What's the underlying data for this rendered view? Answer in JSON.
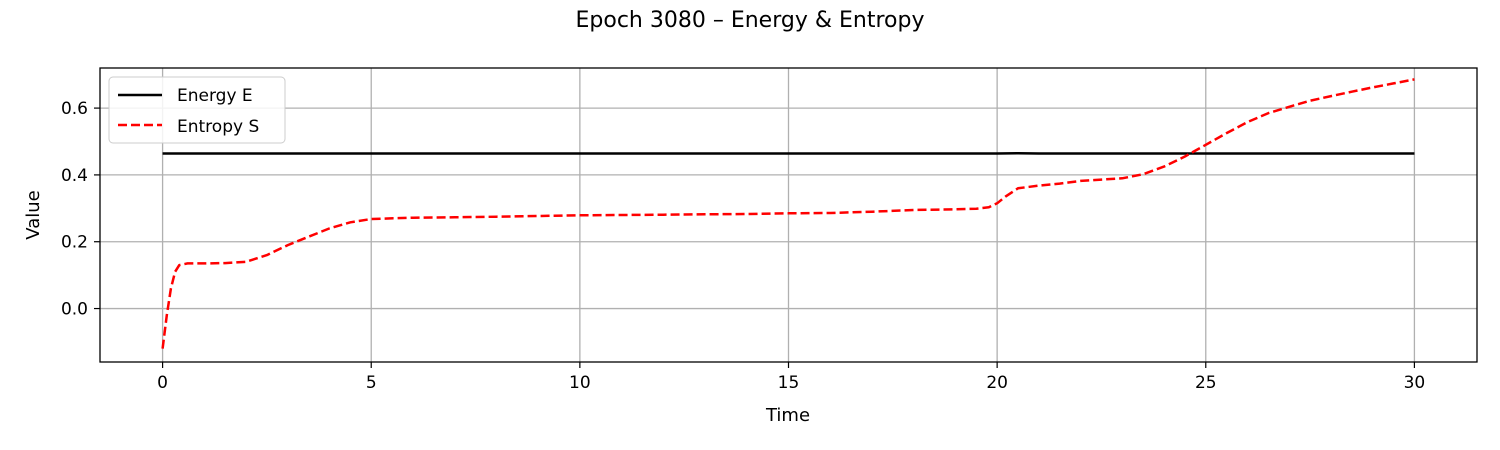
{
  "chart_data": {
    "type": "line",
    "title": "Epoch 3080 – Energy & Entropy",
    "xlabel": "Time",
    "ylabel": "Value",
    "xlim": [
      -1.5,
      31.5
    ],
    "ylim": [
      -0.16,
      0.72
    ],
    "xticks": [
      0,
      5,
      10,
      15,
      20,
      25,
      30
    ],
    "xtick_labels": [
      "0",
      "5",
      "10",
      "15",
      "20",
      "25",
      "30"
    ],
    "yticks": [
      0.0,
      0.2,
      0.4,
      0.6
    ],
    "ytick_labels": [
      "0.0",
      "0.2",
      "0.4",
      "0.6"
    ],
    "grid": true,
    "legend_position": "top-left",
    "series": [
      {
        "name": "Energy E",
        "color": "#000000",
        "linestyle": "solid",
        "x": [
          0,
          5,
          10,
          15,
          20,
          20.5,
          21,
          25,
          30
        ],
        "y": [
          0.464,
          0.464,
          0.464,
          0.464,
          0.464,
          0.465,
          0.464,
          0.464,
          0.464
        ]
      },
      {
        "name": "Entropy S",
        "color": "#ff0000",
        "linestyle": "dashed",
        "x": [
          0,
          0.1,
          0.2,
          0.3,
          0.4,
          0.6,
          1.0,
          1.5,
          2.0,
          2.5,
          3.0,
          3.5,
          4.0,
          4.5,
          5.0,
          6.0,
          7.0,
          8.0,
          9.0,
          10.0,
          11.0,
          12.0,
          13.0,
          14.0,
          15.0,
          16.0,
          17.0,
          18.0,
          19.0,
          19.5,
          19.8,
          20.0,
          20.2,
          20.5,
          21.0,
          21.5,
          22.0,
          22.5,
          23.0,
          23.5,
          24.0,
          24.5,
          25.0,
          25.5,
          26.0,
          26.5,
          27.0,
          27.5,
          28.0,
          28.5,
          29.0,
          29.5,
          30.0
        ],
        "y": [
          -0.12,
          -0.02,
          0.06,
          0.11,
          0.13,
          0.135,
          0.135,
          0.136,
          0.14,
          0.16,
          0.19,
          0.215,
          0.24,
          0.258,
          0.268,
          0.272,
          0.273,
          0.275,
          0.277,
          0.279,
          0.28,
          0.281,
          0.282,
          0.283,
          0.285,
          0.286,
          0.29,
          0.295,
          0.297,
          0.299,
          0.303,
          0.315,
          0.335,
          0.36,
          0.368,
          0.374,
          0.382,
          0.386,
          0.39,
          0.402,
          0.425,
          0.455,
          0.49,
          0.525,
          0.558,
          0.585,
          0.604,
          0.622,
          0.636,
          0.649,
          0.662,
          0.674,
          0.686
        ]
      }
    ]
  }
}
